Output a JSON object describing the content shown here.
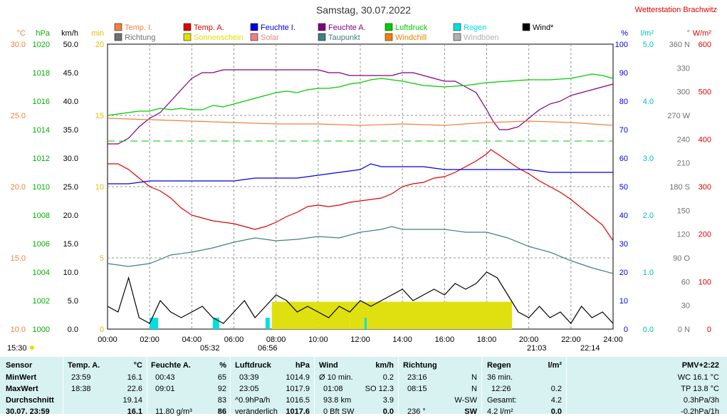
{
  "title": "Samstag, 30.07.2022",
  "station": "Wetterstation Brachwitz",
  "legend": [
    {
      "label": "Temp. I.",
      "color": "#f08040"
    },
    {
      "label": "Temp. A.",
      "color": "#e00000"
    },
    {
      "label": "Feuchte I.",
      "color": "#0000e0"
    },
    {
      "label": "Feuchte A.",
      "color": "#800080"
    },
    {
      "label": "Luftdruck",
      "color": "#00cc00"
    },
    {
      "label": "Regen",
      "color": "#00e0e0"
    },
    {
      "label": "Wind*",
      "color": "#000000"
    },
    {
      "label": "Richtung",
      "color": "#707070"
    },
    {
      "label": "Sonnenschein",
      "color": "#e0e000"
    },
    {
      "label": "Solar",
      "color": "#f08080"
    },
    {
      "label": "Taupunkt",
      "color": "#408080"
    },
    {
      "label": "Windchill",
      "color": "#f08000"
    },
    {
      "label": "Windböen",
      "color": "#b0b0b0"
    }
  ],
  "chart_data": {
    "type": "line",
    "x_ticks": [
      "00:00",
      "02:00",
      "04:00",
      "06:00",
      "08:00",
      "10:00",
      "12:00",
      "14:00",
      "16:00",
      "18:00",
      "20:00",
      "22:00",
      "24:00"
    ],
    "axes": {
      "temp": {
        "unit": "°C",
        "color": "#f08040",
        "ticks": [
          "30.0",
          "25.0",
          "20.0",
          "15.0",
          "10.0"
        ],
        "range": [
          10,
          30
        ]
      },
      "pressure": {
        "unit": "hPa",
        "color": "#00b000",
        "ticks": [
          "1020",
          "1018",
          "1016",
          "1014",
          "1012",
          "1010",
          "1008",
          "1006",
          "1004",
          "1002",
          "1000"
        ],
        "range": [
          1000,
          1020
        ]
      },
      "wind": {
        "unit": "km/h",
        "color": "#000000",
        "ticks": [
          "50.0",
          "45.0",
          "40.0",
          "35.0",
          "30.0",
          "25.0",
          "20.0",
          "15.0",
          "10.0",
          "5.0",
          "0.0"
        ],
        "range": [
          0,
          50
        ]
      },
      "sunshine": {
        "unit": "min",
        "color": "#e0c000",
        "ticks": [
          "20",
          "15",
          "10",
          "5",
          "0"
        ],
        "range": [
          0,
          20
        ]
      },
      "humidity": {
        "unit": "%",
        "color": "#0000e0",
        "ticks": [
          "100",
          "90",
          "80",
          "70",
          "60",
          "50",
          "40",
          "30",
          "20",
          "10",
          "0"
        ],
        "range": [
          0,
          100
        ]
      },
      "rain": {
        "unit": "l/m²",
        "color": "#00c0c0",
        "ticks": [
          "5.0",
          "4.0",
          "3.0",
          "2.0",
          "1.0",
          "0.0"
        ],
        "range": [
          0,
          5
        ]
      },
      "direction": {
        "unit": "°",
        "color": "#707070",
        "ticks": [
          "360 N",
          "330",
          "300",
          "270 W",
          "240",
          "210",
          "180 S",
          "150",
          "120",
          "90 O",
          "60",
          "30",
          "0 N"
        ],
        "range": [
          0,
          360
        ]
      },
      "solar": {
        "unit": "W/m²",
        "color": "#e00000",
        "ticks": [
          "600",
          "500",
          "400",
          "300",
          "200",
          "100",
          "0"
        ],
        "range": [
          0,
          600
        ]
      }
    },
    "series": [
      {
        "name": "Temp. A.",
        "color": "#e00000",
        "x": [
          0,
          0.5,
          1,
          1.5,
          2,
          2.5,
          3,
          3.5,
          4,
          4.5,
          5,
          5.5,
          6,
          6.5,
          7,
          7.5,
          8,
          8.5,
          9,
          9.5,
          10,
          10.5,
          11,
          11.5,
          12,
          12.5,
          13,
          13.5,
          14,
          14.5,
          15,
          15.5,
          16,
          16.5,
          17,
          17.5,
          18,
          18.2,
          18.5,
          19,
          19.5,
          20,
          20.5,
          21,
          21.5,
          22,
          22.5,
          23,
          23.5,
          24
        ],
        "y": [
          21.6,
          21.6,
          21.2,
          20.6,
          20.0,
          19.7,
          19.2,
          18.5,
          18.0,
          17.8,
          17.6,
          17.5,
          17.4,
          17.2,
          17.0,
          17.2,
          17.5,
          17.9,
          18.2,
          18.6,
          18.7,
          18.6,
          18.7,
          18.9,
          19.0,
          19.1,
          19.2,
          19.5,
          20.0,
          20.2,
          20.3,
          20.6,
          20.7,
          21.0,
          21.4,
          21.8,
          22.3,
          22.6,
          22.3,
          21.8,
          21.3,
          20.9,
          20.4,
          20.0,
          19.6,
          19.1,
          18.5,
          17.9,
          17.3,
          16.2
        ]
      },
      {
        "name": "Feuchte A.",
        "color": "#800080",
        "x": [
          0,
          0.5,
          1,
          1.5,
          2,
          2.5,
          3,
          3.5,
          4,
          4.5,
          5,
          5.5,
          6,
          6.5,
          7,
          7.5,
          8,
          8.5,
          9,
          9.5,
          10,
          10.5,
          11,
          11.5,
          12,
          12.5,
          13,
          13.5,
          14,
          14.5,
          15,
          15.5,
          16,
          16.5,
          17,
          17.5,
          18,
          18.3,
          18.6,
          19,
          19.5,
          20,
          20.5,
          21,
          21.5,
          22,
          22.5,
          23,
          23.5,
          24
        ],
        "y": [
          65,
          65,
          67,
          71,
          74,
          76,
          80,
          84,
          88,
          90,
          90,
          91,
          91,
          91,
          91,
          91,
          91,
          91,
          91,
          91,
          91,
          90,
          90,
          89,
          89,
          89,
          89,
          89,
          90,
          90,
          89,
          88,
          87,
          87,
          85,
          83,
          77,
          73,
          70,
          70,
          71,
          74,
          77,
          79,
          80,
          82,
          83,
          84,
          85,
          86
        ]
      },
      {
        "name": "Feuchte I.",
        "color": "#0000e0",
        "x": [
          0,
          1,
          2,
          3,
          4,
          5,
          6,
          7,
          7.5,
          8,
          9,
          10,
          11,
          12,
          12.5,
          13,
          14,
          15,
          16,
          17,
          18,
          19,
          20,
          21,
          22,
          23,
          24
        ],
        "y": [
          51,
          51,
          52,
          52,
          52,
          52,
          52,
          53,
          53,
          53,
          53,
          54,
          55,
          56,
          58,
          57,
          57,
          57,
          56,
          56,
          56,
          56,
          56,
          55,
          55,
          55,
          55
        ]
      },
      {
        "name": "Luftdruck",
        "color": "#00cc00",
        "x": [
          0,
          0.5,
          1,
          1.5,
          2,
          2.5,
          3,
          3.5,
          4,
          4.5,
          5,
          5.5,
          6,
          6.5,
          7,
          7.5,
          8,
          8.5,
          9,
          9.5,
          10,
          10.5,
          11,
          11.5,
          12,
          12.5,
          13,
          13.5,
          14,
          15,
          16,
          17,
          18,
          19,
          20,
          21,
          22,
          23,
          23.5,
          24
        ],
        "y": [
          1015.0,
          1015.1,
          1015.2,
          1015.3,
          1015.3,
          1015.5,
          1015.4,
          1015.5,
          1015.4,
          1015.4,
          1015.7,
          1015.6,
          1015.8,
          1016.0,
          1016.2,
          1016.4,
          1016.6,
          1016.7,
          1016.6,
          1016.8,
          1016.9,
          1016.9,
          1017.0,
          1017.2,
          1017.3,
          1017.5,
          1017.6,
          1017.5,
          1017.4,
          1017.1,
          1017.0,
          1017.1,
          1017.3,
          1017.4,
          1017.5,
          1017.5,
          1017.6,
          1017.9,
          1017.8,
          1017.6
        ]
      },
      {
        "name": "Temp. I.",
        "color": "#f08040",
        "x": [
          0,
          2,
          4,
          6,
          8,
          10,
          12,
          14,
          16,
          18,
          20,
          22,
          24
        ],
        "y": [
          24.8,
          24.7,
          24.6,
          24.5,
          24.4,
          24.4,
          24.3,
          24.4,
          24.3,
          24.5,
          24.6,
          24.5,
          24.3
        ]
      },
      {
        "name": "Taupunkt",
        "color": "#408080",
        "x": [
          0,
          1,
          2,
          3,
          4,
          5,
          6,
          7,
          8,
          9,
          10,
          11,
          12,
          13,
          13.5,
          14,
          15,
          16,
          17,
          18,
          19,
          20,
          21,
          22,
          23,
          24
        ],
        "y": [
          14.6,
          14.4,
          14.6,
          15.2,
          15.4,
          15.7,
          16.1,
          16.4,
          16.2,
          16.3,
          16.5,
          16.4,
          16.8,
          17.0,
          17.2,
          17.0,
          17.0,
          17.0,
          16.8,
          16.8,
          16.4,
          15.8,
          15.4,
          14.8,
          14.3,
          13.9
        ]
      },
      {
        "name": "Wind*",
        "color": "#000000",
        "x": [
          0,
          0.5,
          1,
          1.5,
          2,
          2.5,
          3,
          3.5,
          4,
          4.5,
          5,
          5.5,
          6,
          6.5,
          7,
          7.5,
          8,
          8.5,
          9,
          9.5,
          10,
          10.5,
          11,
          11.5,
          12,
          12.5,
          13,
          13.5,
          14,
          14.5,
          15,
          15.5,
          16,
          16.5,
          17,
          17.5,
          18,
          18.5,
          19,
          19.5,
          20,
          20.5,
          21,
          21.5,
          22,
          22.5,
          23,
          23.5,
          24
        ],
        "y": [
          4,
          3,
          9,
          2,
          1,
          5,
          3,
          2,
          3,
          4,
          2,
          1,
          3,
          5,
          2,
          4,
          6,
          5,
          3,
          4,
          3,
          2,
          4,
          3,
          5,
          4,
          5,
          6,
          7,
          5,
          6,
          7,
          6,
          8,
          7,
          8,
          10,
          9,
          6,
          3,
          2,
          4,
          2,
          3,
          1,
          4,
          2,
          3,
          1
        ]
      }
    ],
    "sunshine_blocks": [
      [
        7.8,
        8.3
      ],
      [
        8.3,
        10.0
      ],
      [
        10.0,
        11.5
      ],
      [
        11.5,
        19.2
      ]
    ],
    "rain_blocks": [
      [
        2.0,
        2.4
      ],
      [
        5.0,
        5.3
      ],
      [
        7.5,
        7.7
      ],
      [
        12.2,
        12.3
      ]
    ],
    "sun_events": {
      "left_start": "15:30",
      "sunrise": "05:32",
      "rain_start": "06:56",
      "sunset": "21:03",
      "moon": "22:14"
    }
  },
  "stats": {
    "sensor_col": {
      "header": "Sensor",
      "rows": [
        "MinWert",
        "MaxWert",
        "Durchschnitt",
        "30.07. 23:59"
      ]
    },
    "temp": {
      "header": "Temp. A.",
      "unit": "°C",
      "rows": [
        [
          "23:59",
          "16.1"
        ],
        [
          "18:38",
          "22.6"
        ],
        [
          "",
          "19.14"
        ],
        [
          "",
          "16.1"
        ]
      ]
    },
    "hum": {
      "header": "Feuchte A.",
      "unit": "%",
      "rows": [
        [
          "00:43",
          "65"
        ],
        [
          "09:01",
          "92"
        ],
        [
          "",
          "83"
        ],
        [
          "11.80 g/m³",
          "86"
        ]
      ]
    },
    "pres": {
      "header": "Luftdruck",
      "unit": "hPa",
      "rows": [
        [
          "03:39",
          "1014.9"
        ],
        [
          "23:05",
          "1017.9"
        ],
        [
          "^0.9hPa/h",
          "1016.5"
        ],
        [
          "veränderlich",
          "1017.6"
        ]
      ]
    },
    "wind": {
      "header": "Wind",
      "unit": "km/h",
      "rows": [
        [
          "Ø 10 min.",
          "0.2"
        ],
        [
          "01:08",
          "SO 12.3"
        ],
        [
          "93.8 km",
          "3.9"
        ],
        [
          "0 Bft SW",
          "0.0"
        ]
      ]
    },
    "dir": {
      "header": "Richtung",
      "unit": "",
      "rows": [
        [
          "23:16",
          "N"
        ],
        [
          "08:15",
          "N"
        ],
        [
          "",
          "W-SW"
        ],
        [
          "236 °",
          "SW"
        ]
      ]
    },
    "rain": {
      "header": "Regen",
      "unit": "l/m²",
      "rows": [
        [
          "36 min.",
          ""
        ],
        [
          "12:26",
          "0.2"
        ],
        [
          "Gesamt:",
          "4.2"
        ],
        [
          "4.2 l/m²",
          "0.0"
        ]
      ]
    },
    "pmv": {
      "header": "PMV+2:22",
      "rows": [
        "WC 16.1 °C",
        "TP 13.8 °C",
        "0.3hPa/3h",
        "-0.2hPa/1h"
      ]
    }
  }
}
